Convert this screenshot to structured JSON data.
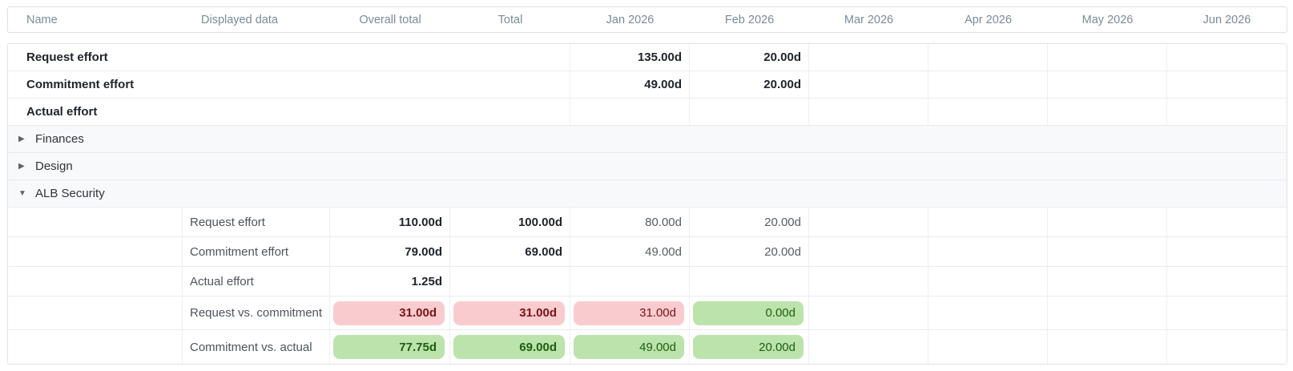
{
  "table": {
    "columns": [
      {
        "key": "name",
        "label": "Name",
        "align": "left"
      },
      {
        "key": "displayed_data",
        "label": "Displayed data",
        "align": "left"
      },
      {
        "key": "overall_total",
        "label": "Overall total",
        "align": "center"
      },
      {
        "key": "total",
        "label": "Total",
        "align": "center"
      },
      {
        "key": "jan_2026",
        "label": "Jan 2026",
        "align": "center"
      },
      {
        "key": "feb_2026",
        "label": "Feb 2026",
        "align": "center"
      },
      {
        "key": "mar_2026",
        "label": "Mar 2026",
        "align": "center"
      },
      {
        "key": "apr_2026",
        "label": "Apr 2026",
        "align": "center"
      },
      {
        "key": "may_2026",
        "label": "May 2026",
        "align": "center"
      },
      {
        "key": "jun_2026",
        "label": "Jun 2026",
        "align": "center"
      }
    ],
    "rows": [
      {
        "type": "summary",
        "label": "Request effort",
        "cells": {
          "jan_2026": "135.00d",
          "feb_2026": "20.00d"
        }
      },
      {
        "type": "summary",
        "label": "Commitment effort",
        "cells": {
          "jan_2026": "49.00d",
          "feb_2026": "20.00d"
        }
      },
      {
        "type": "summary",
        "label": "Actual effort",
        "cells": {}
      },
      {
        "type": "group",
        "label": "Finances",
        "expanded": false
      },
      {
        "type": "group",
        "label": "Design",
        "expanded": false
      },
      {
        "type": "group",
        "label": "ALB Security",
        "expanded": true
      },
      {
        "type": "detail",
        "label": "Request effort",
        "cells": {
          "overall_total": "110.00d",
          "total": "100.00d",
          "jan_2026": "80.00d",
          "feb_2026": "20.00d"
        }
      },
      {
        "type": "detail",
        "label": "Commitment effort",
        "cells": {
          "overall_total": "79.00d",
          "total": "69.00d",
          "jan_2026": "49.00d",
          "feb_2026": "20.00d"
        }
      },
      {
        "type": "detail",
        "label": "Actual effort",
        "cells": {
          "overall_total": "1.25d"
        }
      },
      {
        "type": "comparison",
        "label": "Request vs. commitment",
        "cells": {
          "overall_total": {
            "value": "31.00d",
            "status": "negative"
          },
          "total": {
            "value": "31.00d",
            "status": "negative"
          },
          "jan_2026": {
            "value": "31.00d",
            "status": "negative"
          },
          "feb_2026": {
            "value": "0.00d",
            "status": "positive"
          }
        }
      },
      {
        "type": "comparison",
        "label": "Commitment vs. actual",
        "cells": {
          "overall_total": {
            "value": "77.75d",
            "status": "positive"
          },
          "total": {
            "value": "69.00d",
            "status": "positive"
          },
          "jan_2026": {
            "value": "49.00d",
            "status": "positive"
          },
          "feb_2026": {
            "value": "20.00d",
            "status": "positive"
          }
        }
      }
    ]
  },
  "icons": {
    "collapsed": "▶",
    "expanded": "▼"
  },
  "colors": {
    "negative_bg": "#f8cccf",
    "negative_text": "#7c1116",
    "positive_bg": "#bbe3ab",
    "positive_text": "#1f5d10",
    "header_text": "#7b8a9a",
    "group_row_bg": "#f7f9fb"
  }
}
